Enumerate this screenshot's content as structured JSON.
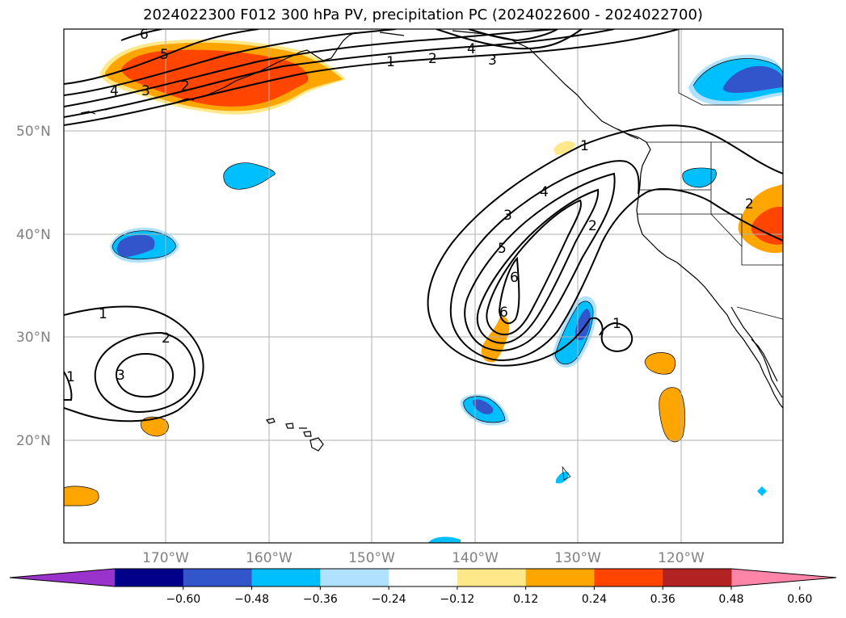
{
  "title": "2024022300 F012 300 hPa PV, precipitation PC (2024022600 - 2024022700)",
  "lat_labels": [
    "50°N",
    "40°N",
    "30°N",
    "20°N"
  ],
  "lon_labels": [
    "170°W",
    "160°W",
    "150°W",
    "140°W",
    "130°W",
    "120°W"
  ],
  "contour_labels": [
    "1",
    "2",
    "3",
    "4",
    "5",
    "6"
  ],
  "colorbar": {
    "colors": [
      "#9933cc",
      "#00008b",
      "#3355cc",
      "#00bfff",
      "#b0e2ff",
      "#ffffff",
      "#ffe88a",
      "#ffa500",
      "#ff4500",
      "#b22222",
      "#ff85a8"
    ],
    "tick_labels": [
      "−0.60",
      "−0.48",
      "−0.36",
      "−0.24",
      "−0.12",
      "0.12",
      "0.24",
      "0.36",
      "0.48",
      "0.60"
    ]
  }
}
